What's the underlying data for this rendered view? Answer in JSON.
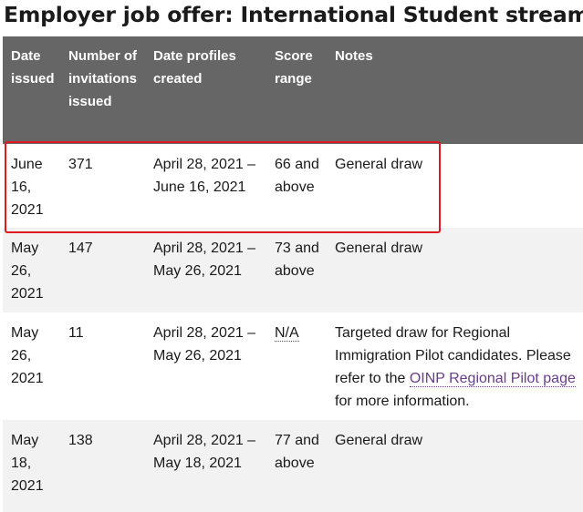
{
  "page": {
    "heading": "Employer job offer: International Student stream"
  },
  "table": {
    "headers": {
      "date_issued": "Date issued",
      "number_issued": "Number of invitations issued",
      "date_profiles": "Date profiles created",
      "score_range": "Score range",
      "notes": "Notes"
    },
    "rows": [
      {
        "date_issued": "June 16, 2021",
        "number": "371",
        "date_profiles": "April 28, 2021 – June 16, 2021",
        "score_range": "66 and above",
        "notes": "General draw"
      },
      {
        "date_issued": "May 26, 2021",
        "number": "147",
        "date_profiles": "April 28, 2021 – May 26, 2021",
        "score_range": "73 and above",
        "notes": "General draw"
      },
      {
        "date_issued": "May 26, 2021",
        "number": "11",
        "date_profiles": "April 28, 2021 – May 26, 2021",
        "score_range": "N/A",
        "notes_before": "Targeted draw for Regional Immigration Pilot candidates. Please refer to the ",
        "notes_link": "OINP Regional Pilot page",
        "notes_after": " for more information."
      },
      {
        "date_issued": "May 18, 2021",
        "number": "138",
        "date_profiles": "April 28, 2021 – May 18, 2021",
        "score_range": "77 and above",
        "notes": "General draw"
      }
    ]
  },
  "colors": {
    "header_bg": "#666666",
    "stripe_bg": "#f2f2f2",
    "highlight_border": "#e0191e",
    "link": "#6a3d8a"
  }
}
